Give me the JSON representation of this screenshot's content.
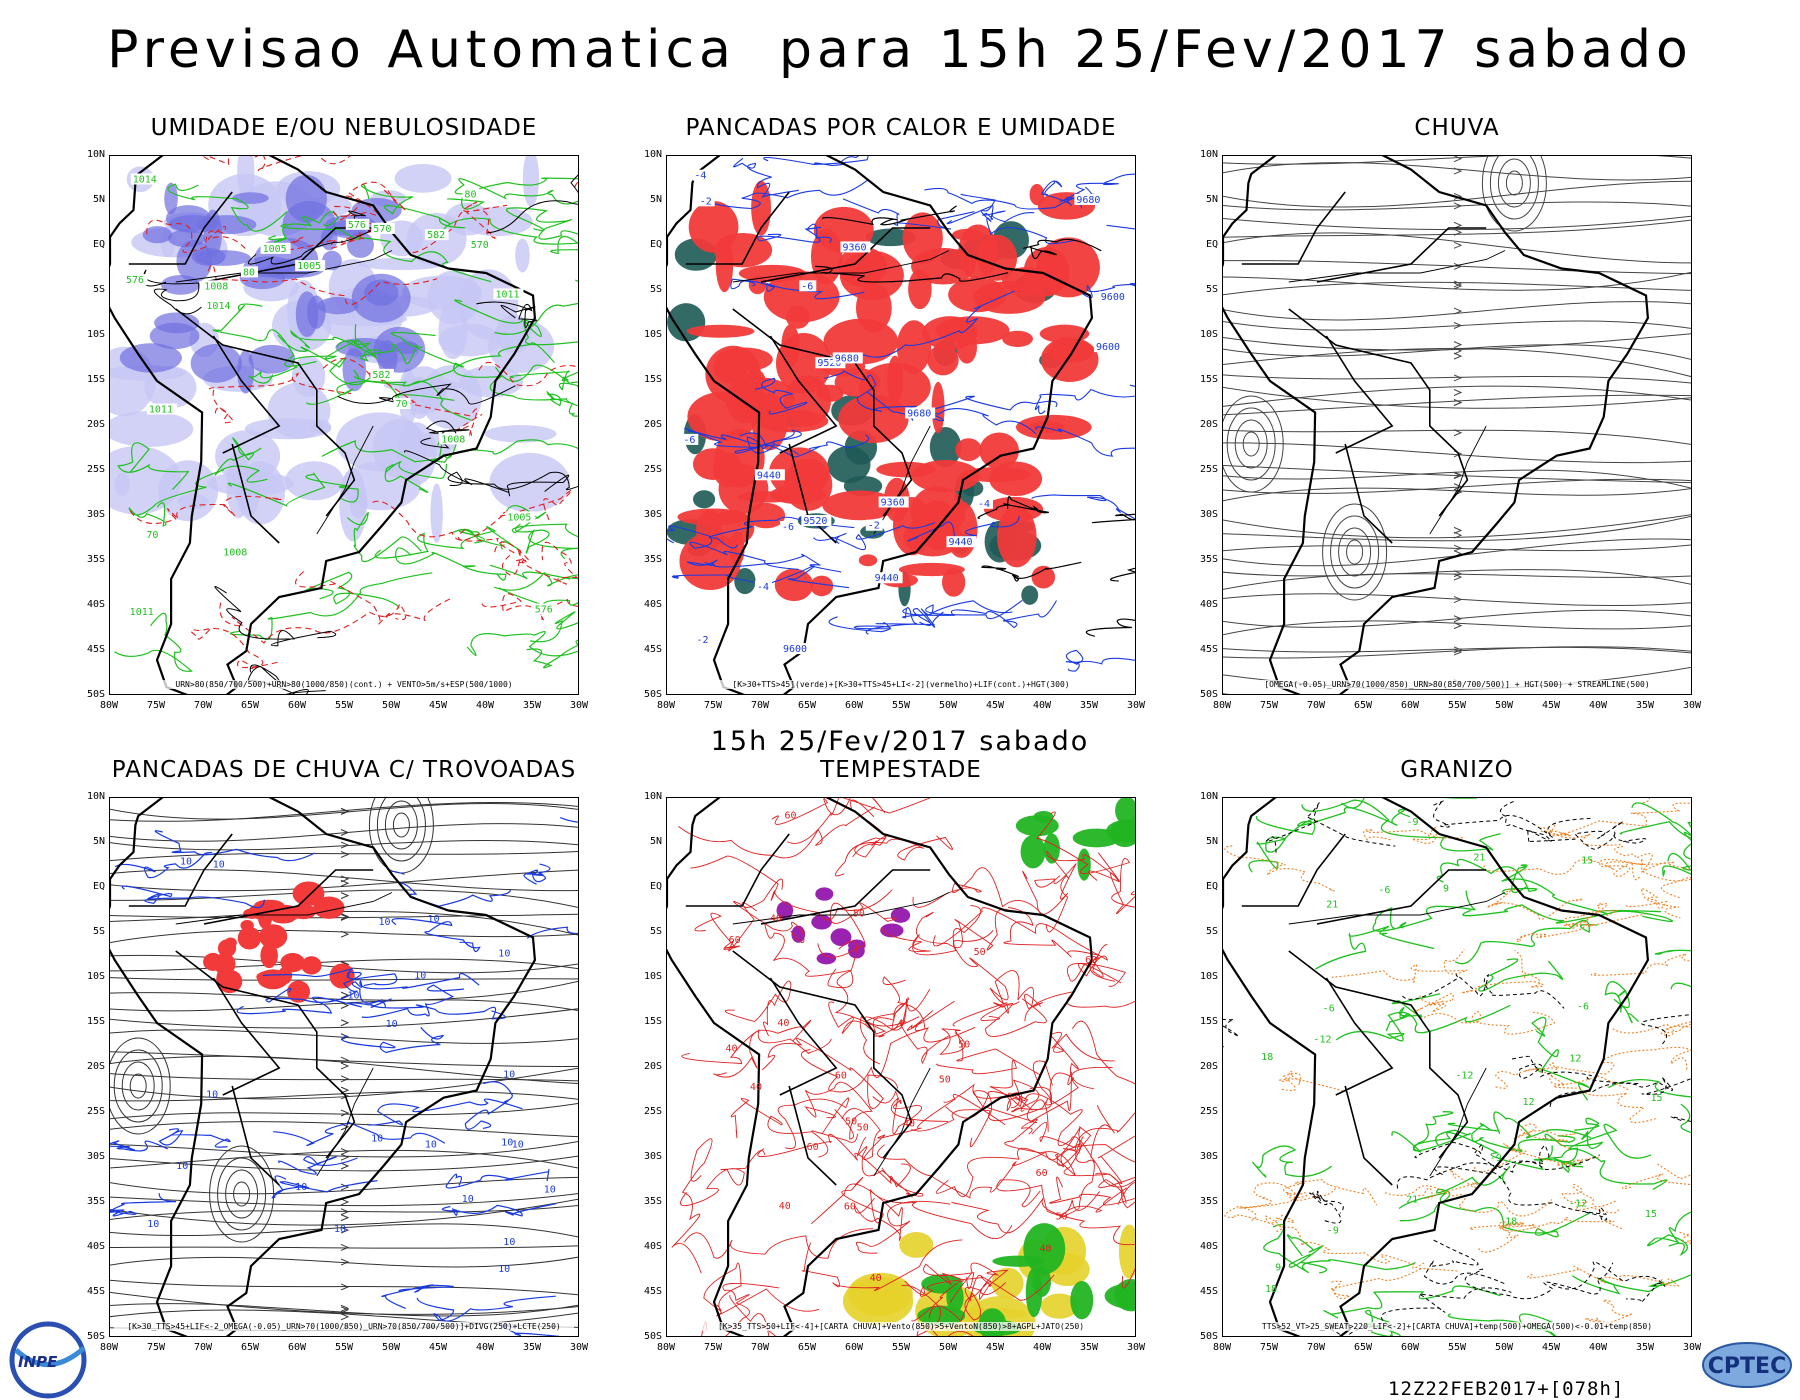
{
  "header": {
    "title": "Previsao Automatica  para 15h 25/Fev/2017 sabado",
    "subtitle": "15h 25/Fev/2017 sabado"
  },
  "axes": {
    "lat_labels": [
      "10N",
      "5N",
      "EQ",
      "5S",
      "10S",
      "15S",
      "20S",
      "25S",
      "30S",
      "35S",
      "40S",
      "45S",
      "50S"
    ],
    "lon_labels": [
      "80W",
      "75W",
      "70W",
      "65W",
      "60W",
      "55W",
      "50W",
      "45W",
      "40W",
      "35W",
      "30W"
    ]
  },
  "panels": [
    {
      "title": "UMIDADE E/OU NEBULOSIDADE",
      "caption": "URN>80(850/700/500)+URN>80(1000/850)(cont.) + VENTO>5m/s+ESP(500/1000)",
      "contour_labels": [
        "576",
        "1008",
        "1011",
        "1005",
        "1014",
        "70",
        "80",
        "582",
        "570"
      ],
      "colors": {
        "fill": "#6f6fe0",
        "contour_primary": "#1fc11f",
        "contour_secondary": "#e02020"
      }
    },
    {
      "title": "PANCADAS POR CALOR E UMIDADE",
      "caption": "[K>30+TTS>45](verde)+[K>30+TTS>45+LI<-2](vermelho)+LIF(cont.)+HGT(300)",
      "contour_labels": [
        "-2",
        "-4",
        "-6",
        "9680",
        "9600",
        "9440",
        "9360",
        "9520"
      ],
      "colors": {
        "fill": "#f23a3a",
        "fill_secondary": "#1e5a55",
        "contour_primary": "#1a3ae0"
      }
    },
    {
      "title": "CHUVA",
      "caption": "[OMEGA(-0.05)_URN>70(1000/850)_URN>80(850/700/500)] + HGT(500) + STREAMLINE(500)",
      "contour_labels": [],
      "colors": {
        "contour_primary": "#444444"
      }
    },
    {
      "title": "PANCADAS DE CHUVA C/ TROVOADAS",
      "caption": "[K>30_TTS>45+LIF<-2_OMEGA(-0.05)_URN>70(1000/850)_URN>70(850/700/500)]+DIVG(250)+LCTE(250)",
      "contour_labels": [
        "10"
      ],
      "colors": {
        "fill": "#f23a3a",
        "contour_primary": "#1a3ae0"
      }
    },
    {
      "title": "TEMPESTADE",
      "caption": "[K>35_TTS>50+LIF<-4]+[CARTA CHUVA]+Vento(850)>5+VentoN(850)>8+AGPL+JATO(250)",
      "contour_labels": [
        "40",
        "50",
        "60"
      ],
      "colors": {
        "fill": "#22b422",
        "fill_secondary": "#e6d22a",
        "fill_tertiary": "#9a22b0",
        "contour_primary": "#e02020"
      }
    },
    {
      "title": "GRANIZO",
      "caption": "TTS>52_VT>25_SWEAT>220_LIF<-2]+[CARTA CHUVA]+temp(500)+OMEGA(500)<-0.01+temp(850)",
      "contour_labels": [
        "-6",
        "-9",
        "-12",
        "18",
        "21",
        "15",
        "12",
        "9"
      ],
      "colors": {
        "contour_primary": "#1fc11f",
        "contour_secondary": "#f08020",
        "contour_tertiary": "#000000"
      }
    }
  ],
  "footer": {
    "run_stamp": "12Z22FEB2017+[078h]",
    "logo_left": "INPE",
    "logo_right": "CPTEC"
  }
}
